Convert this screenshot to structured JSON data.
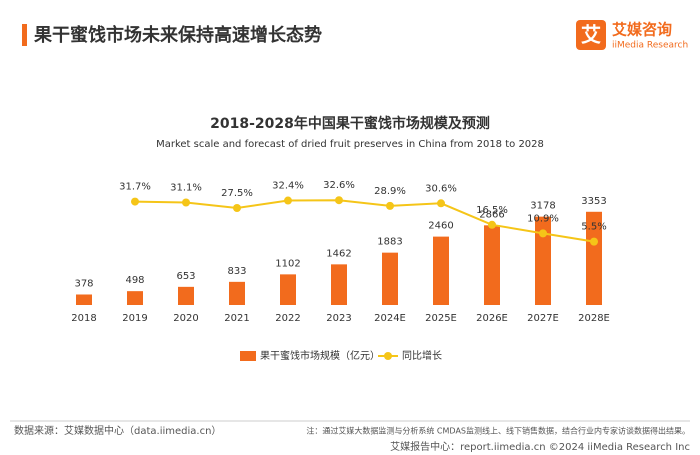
{
  "header": {
    "title": "果干蜜饯市场未来保持高速增长态势",
    "logo": "艾媒咨询",
    "logo_en": "iiMedia Research",
    "logo_mark": "艾"
  },
  "chart_data": {
    "type": "bar_line",
    "title": "2018-2028年中国果干蜜饯市场规模及预测",
    "subtitle": "Market scale and forecast of dried fruit preserves in China from 2018 to 2028",
    "categories": [
      "2018",
      "2019",
      "2020",
      "2021",
      "2022",
      "2023",
      "2024E",
      "2025E",
      "2026E",
      "2027E",
      "2028E"
    ],
    "series": [
      {
        "name": "果干蜜饯市场规模（亿元）",
        "color": "#f26b1d",
        "values": [
          378,
          498,
          653,
          833,
          1102,
          1462,
          1883,
          2460,
          2866,
          3178,
          3353
        ]
      },
      {
        "name": "同比增长",
        "color": "#f5c518",
        "axis": "y2",
        "values": [
          null,
          31.7,
          31.1,
          27.5,
          32.4,
          32.6,
          28.9,
          30.6,
          16.5,
          10.9,
          5.5
        ],
        "value_labels": [
          null,
          "31.7%",
          "31.1%",
          "27.5%",
          "32.4%",
          "32.6%",
          "28.9%",
          "30.6%",
          "16.5%",
          "10.9%",
          "5.5%"
        ]
      }
    ],
    "ylim": [
      0,
      5000
    ],
    "y2lim": [
      -36,
      55
    ],
    "legend": "bottom"
  },
  "footer": {
    "source": "数据来源：艾媒数据中心（data.iimedia.cn）",
    "note": "注：通过艾媒大数据监测与分析系统 CMDAS监测线上、线下销售数据，结合行业内专家访谈数据得出结果。",
    "report": "艾媒报告中心：report.iimedia.cn  ©2024  iiMedia Research Inc"
  }
}
